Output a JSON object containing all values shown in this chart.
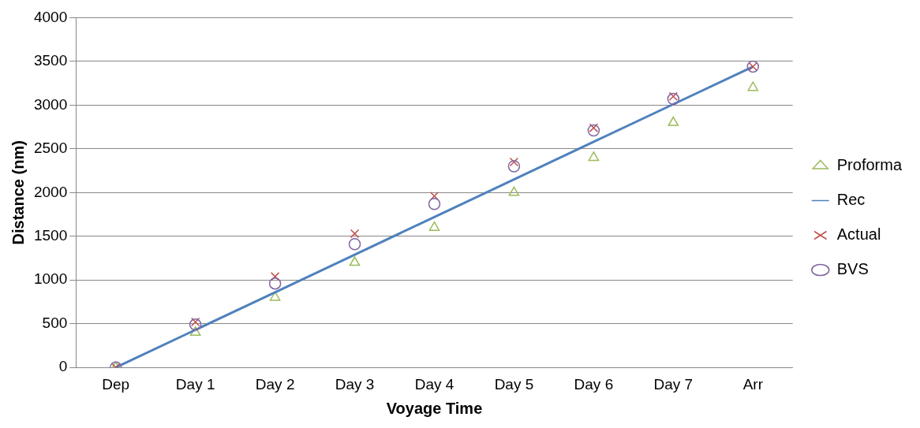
{
  "chart_data": {
    "type": "scatter",
    "xlabel": "Voyage Time",
    "ylabel": "Distance (nm)",
    "categories": [
      "Dep",
      "Day 1",
      "Day 2",
      "Day 3",
      "Day 4",
      "Day 5",
      "Day 6",
      "Day 7",
      "Arr"
    ],
    "series": [
      {
        "name": "Proforma",
        "marker": "triangle",
        "color": "#9bbb59",
        "values": [
          0,
          400,
          800,
          1200,
          1600,
          2000,
          2400,
          2800,
          3200
        ]
      },
      {
        "name": "Rec",
        "type": "line",
        "marker": "none",
        "color": "#4f81bd",
        "values": [
          0,
          430,
          860,
          1290,
          1720,
          2150,
          2580,
          3010,
          3440
        ]
      },
      {
        "name": "Actual",
        "marker": "cross",
        "color": "#c0504d",
        "values": [
          0,
          520,
          1040,
          1530,
          1960,
          2350,
          2740,
          3100,
          3440
        ]
      },
      {
        "name": "BVS",
        "marker": "circle",
        "color": "#8064a2",
        "values": [
          0,
          490,
          960,
          1410,
          1870,
          2300,
          2710,
          3070,
          3440
        ]
      }
    ],
    "ylim": [
      0,
      4000
    ],
    "yticks": [
      0,
      500,
      1000,
      1500,
      2000,
      2500,
      3000,
      3500,
      4000
    ],
    "grid": "y",
    "legend": "right"
  }
}
